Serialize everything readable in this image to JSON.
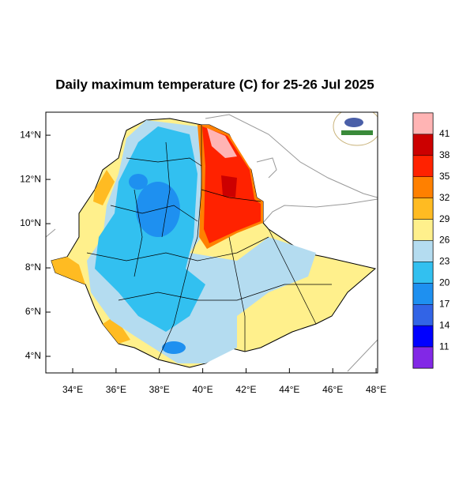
{
  "map": {
    "title": "Daily maximum temperature (C) for 25-26 Jul 2025",
    "xlim": [
      32.76,
      48.07
    ],
    "ylim": [
      3.25,
      15.04
    ],
    "xticks": [
      {
        "value": 34,
        "label": "34°E"
      },
      {
        "value": 36,
        "label": "36°E"
      },
      {
        "value": 38,
        "label": "38°E"
      },
      {
        "value": 40,
        "label": "40°E"
      },
      {
        "value": 42,
        "label": "42°E"
      },
      {
        "value": 44,
        "label": "44°E"
      },
      {
        "value": 46,
        "label": "46°E"
      },
      {
        "value": 48,
        "label": "48°E"
      }
    ],
    "yticks": [
      {
        "value": 4,
        "label": "4°N"
      },
      {
        "value": 6,
        "label": "6°N"
      },
      {
        "value": 8,
        "label": "8°N"
      },
      {
        "value": 10,
        "label": "10°N"
      },
      {
        "value": 12,
        "label": "12°N"
      },
      {
        "value": 14,
        "label": "14°N"
      }
    ],
    "colorbar": {
      "levels": [
        41,
        38,
        35,
        32,
        29,
        26,
        23,
        20,
        17,
        14,
        11
      ],
      "colors": [
        "#ffb4b4",
        "#cc0000",
        "#ff2200",
        "#ff8000",
        "#ffbb22",
        "#fff08c",
        "#b4dcf0",
        "#32c0f0",
        "#1e90f0",
        "#3264e6",
        "#0000ff",
        "#8228e6"
      ]
    }
  }
}
